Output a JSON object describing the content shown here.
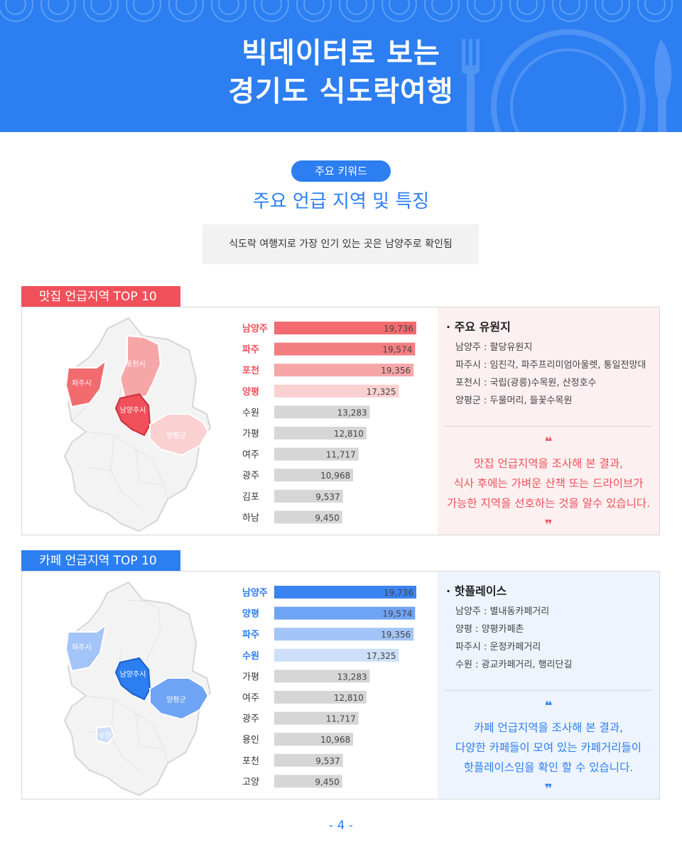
{
  "header": {
    "title_line1": "빅데이터로 보는",
    "title_line2": "경기도 식도락여행",
    "bg_color": "#2c7ef1"
  },
  "keyword_pill": "주요 키워드",
  "subtitle": "주요 언급 지역 및 특징",
  "summary": "식도락 여행지로 가장 인기 있는 곳은 남양주로 확인됨",
  "restaurant": {
    "tab": "맛집 언급지역 TOP 10",
    "accent": "#f0505a",
    "info_bg": "#fdf0f0",
    "map_labels": {
      "paju": "파주시",
      "pocheon": "포천시",
      "namyangju": "남양주시",
      "yangpyeong": "양평군"
    },
    "info_title": "주요 유원지",
    "info_items": [
      "남양주 : 팔당유원지",
      "파주시 : 임진각, 파주프리미엄아울렛, 통일전망대",
      "포천시 : 국립(광릉)수목원, 산정호수",
      "양평군 : 두물머리, 들꽃수목원"
    ],
    "quote_open": "❝",
    "quote_close": "❞",
    "quote_line1": "맛집 언급지역을 조사해 본 결과,",
    "quote_line2": "식사 후에는 가벼운 산책 또는 드라이브가",
    "quote_line3": "가능한 지역을 선호하는 것을 알수 있습니다."
  },
  "cafe": {
    "tab": "카페 언급지역 TOP 10",
    "accent": "#2c7ef1",
    "info_bg": "#edf4fd",
    "map_labels": {
      "paju": "파주시",
      "namyangju": "남양주시",
      "yangpyeong": "양평군",
      "suwon": "수원"
    },
    "info_title": "핫플레이스",
    "info_items": [
      "남양주 : 별내동카페거리",
      "양평 : 양평카페촌",
      "파주시 : 운정카페거리",
      "수원 : 광교카페거리, 행리단길"
    ],
    "quote_open": "❝",
    "quote_close": "❞",
    "quote_line1": "카페 언급지역을 조사해 본 결과,",
    "quote_line2": "다양한 카페들이 모여 있는 카페거리들이",
    "quote_line3": "핫플레이스임을  확인 할 수 있습니다."
  },
  "chart_data": [
    {
      "type": "bar",
      "orientation": "horizontal",
      "title": "맛집 언급지역 TOP 10",
      "categories": [
        "남양주",
        "파주",
        "포천",
        "양평",
        "수원",
        "가평",
        "여주",
        "광주",
        "김포",
        "하남"
      ],
      "values": [
        19736,
        19574,
        19356,
        17325,
        13283,
        12810,
        11717,
        10968,
        9537,
        9450
      ],
      "value_labels": [
        "19,736",
        "19,574",
        "19,356",
        "17,325",
        "13,283",
        "12,810",
        "11,717",
        "10,968",
        "9,537",
        "9,450"
      ],
      "colors": [
        "#f26b6f",
        "#f47d80",
        "#f7a6a8",
        "#fbd0d1",
        "#d6d6d6",
        "#d6d6d6",
        "#d6d6d6",
        "#d6d6d6",
        "#d6d6d6",
        "#d6d6d6"
      ],
      "highlight_label_color": "#f0505a",
      "highlight_count": 4,
      "xlim": [
        0,
        19736
      ],
      "grid": false
    },
    {
      "type": "bar",
      "orientation": "horizontal",
      "title": "카페 언급지역 TOP 10",
      "categories": [
        "남양주",
        "양평",
        "파주",
        "수원",
        "가평",
        "여주",
        "광주",
        "용인",
        "포천",
        "고양"
      ],
      "values": [
        19736,
        19574,
        19356,
        17325,
        13283,
        12810,
        11717,
        10968,
        9537,
        9450
      ],
      "value_labels": [
        "19,736",
        "19,574",
        "19,356",
        "17,325",
        "13,283",
        "12,810",
        "11,717",
        "10,968",
        "9,537",
        "9,450"
      ],
      "colors": [
        "#3a83f0",
        "#6fa3f4",
        "#a3c4f8",
        "#cddff9",
        "#d6d6d6",
        "#d6d6d6",
        "#d6d6d6",
        "#d6d6d6",
        "#d6d6d6",
        "#d6d6d6"
      ],
      "highlight_label_color": "#2c7ef1",
      "highlight_count": 4,
      "xlim": [
        0,
        19736
      ],
      "grid": false
    }
  ],
  "footer": "- 4 -"
}
